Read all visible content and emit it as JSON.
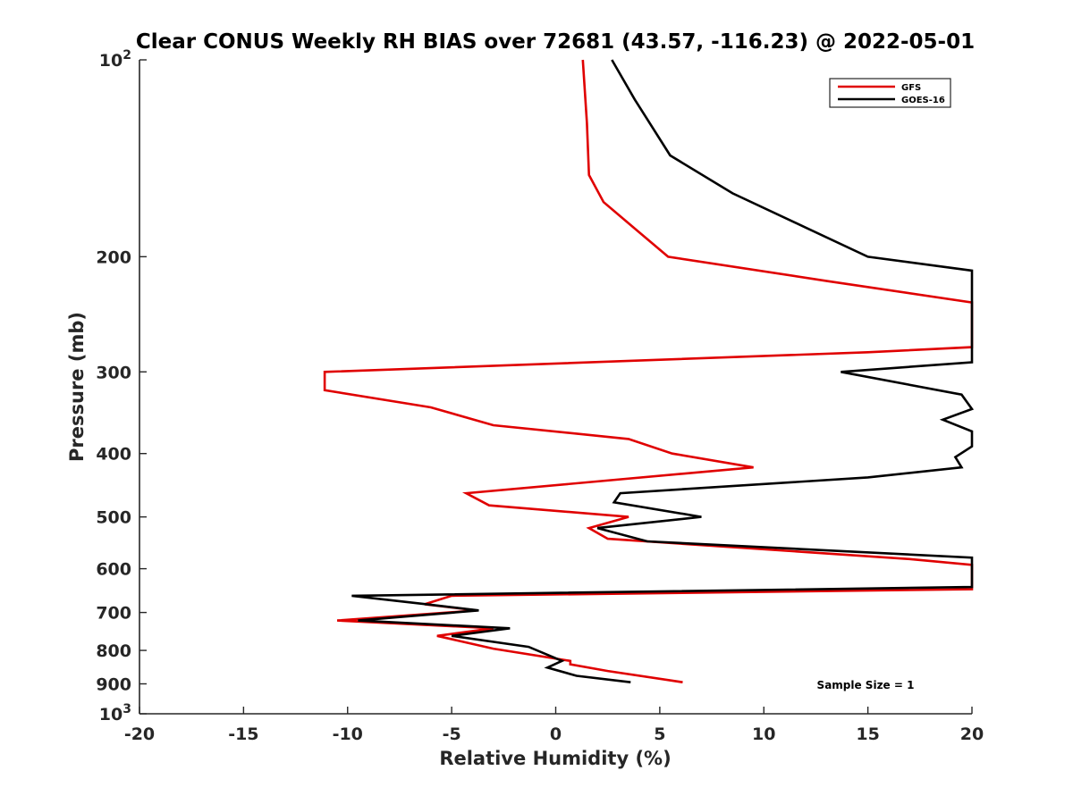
{
  "chart_data": {
    "type": "line",
    "title": "Clear CONUS Weekly RH BIAS over 72681 (43.57, -116.23) @ 2022-05-01",
    "xlabel": "Relative Humidity (%)",
    "ylabel": "Pressure (mb)",
    "xlim": [
      -20,
      20
    ],
    "ylim": [
      100,
      1000
    ],
    "y_scale": "log",
    "y_reversed": true,
    "grid": false,
    "legend_position": "top-right",
    "x_ticks": [
      "-20",
      "-15",
      "-10",
      "-5",
      "0",
      "5",
      "10",
      "15",
      "20"
    ],
    "y_ticks": [
      {
        "value": 100,
        "base": "10",
        "exp": "2"
      },
      {
        "value": 200,
        "base": "200",
        "exp": ""
      },
      {
        "value": 300,
        "base": "300",
        "exp": ""
      },
      {
        "value": 400,
        "base": "400",
        "exp": ""
      },
      {
        "value": 500,
        "base": "500",
        "exp": ""
      },
      {
        "value": 600,
        "base": "600",
        "exp": ""
      },
      {
        "value": 700,
        "base": "700",
        "exp": ""
      },
      {
        "value": 800,
        "base": "800",
        "exp": ""
      },
      {
        "value": 900,
        "base": "900",
        "exp": ""
      },
      {
        "value": 1000,
        "base": "10",
        "exp": "3"
      }
    ],
    "annotation": "Sample Size = 1",
    "series": [
      {
        "name": "GFS",
        "color": "#e00000",
        "points": [
          [
            1.3,
            100
          ],
          [
            1.5,
            125
          ],
          [
            1.6,
            150
          ],
          [
            2.3,
            165
          ],
          [
            3.7,
            180
          ],
          [
            5.4,
            200
          ],
          [
            13.1,
            218
          ],
          [
            20.0,
            235
          ],
          [
            20.0,
            275
          ],
          [
            15.0,
            280
          ],
          [
            -11.1,
            300
          ],
          [
            -11.1,
            320
          ],
          [
            -6.0,
            340
          ],
          [
            -3.0,
            362
          ],
          [
            3.5,
            380
          ],
          [
            5.6,
            400
          ],
          [
            9.5,
            420
          ],
          [
            -4.3,
            460
          ],
          [
            -3.2,
            480
          ],
          [
            3.5,
            500
          ],
          [
            1.6,
            520
          ],
          [
            2.5,
            540
          ],
          [
            17.0,
            580
          ],
          [
            20.0,
            592
          ],
          [
            20.0,
            645
          ],
          [
            -5.0,
            660
          ],
          [
            -6.3,
            680
          ],
          [
            -3.8,
            695
          ],
          [
            -10.5,
            720
          ],
          [
            -3.0,
            740
          ],
          [
            -5.7,
            760
          ],
          [
            -3.0,
            795
          ],
          [
            0.7,
            830
          ],
          [
            0.7,
            840
          ],
          [
            2.5,
            860
          ],
          [
            6.1,
            895
          ]
        ]
      },
      {
        "name": "GOES-16",
        "color": "#000000",
        "points": [
          [
            2.7,
            100
          ],
          [
            3.8,
            115
          ],
          [
            5.5,
            140
          ],
          [
            8.5,
            160
          ],
          [
            15.0,
            200
          ],
          [
            20.0,
            210
          ],
          [
            20.0,
            290
          ],
          [
            13.7,
            300
          ],
          [
            19.5,
            325
          ],
          [
            20.0,
            342
          ],
          [
            18.6,
            355
          ],
          [
            20.0,
            370
          ],
          [
            20.0,
            390
          ],
          [
            19.2,
            405
          ],
          [
            19.5,
            420
          ],
          [
            15.0,
            435
          ],
          [
            3.1,
            460
          ],
          [
            2.8,
            475
          ],
          [
            7.0,
            500
          ],
          [
            2.0,
            520
          ],
          [
            4.4,
            545
          ],
          [
            20.0,
            577
          ],
          [
            20.0,
            640
          ],
          [
            -9.8,
            660
          ],
          [
            -6.2,
            680
          ],
          [
            -3.7,
            695
          ],
          [
            -9.5,
            720
          ],
          [
            -2.2,
            740
          ],
          [
            -5.0,
            760
          ],
          [
            -1.3,
            790
          ],
          [
            0.3,
            830
          ],
          [
            -0.4,
            850
          ],
          [
            1.0,
            875
          ],
          [
            3.6,
            895
          ]
        ]
      }
    ]
  }
}
